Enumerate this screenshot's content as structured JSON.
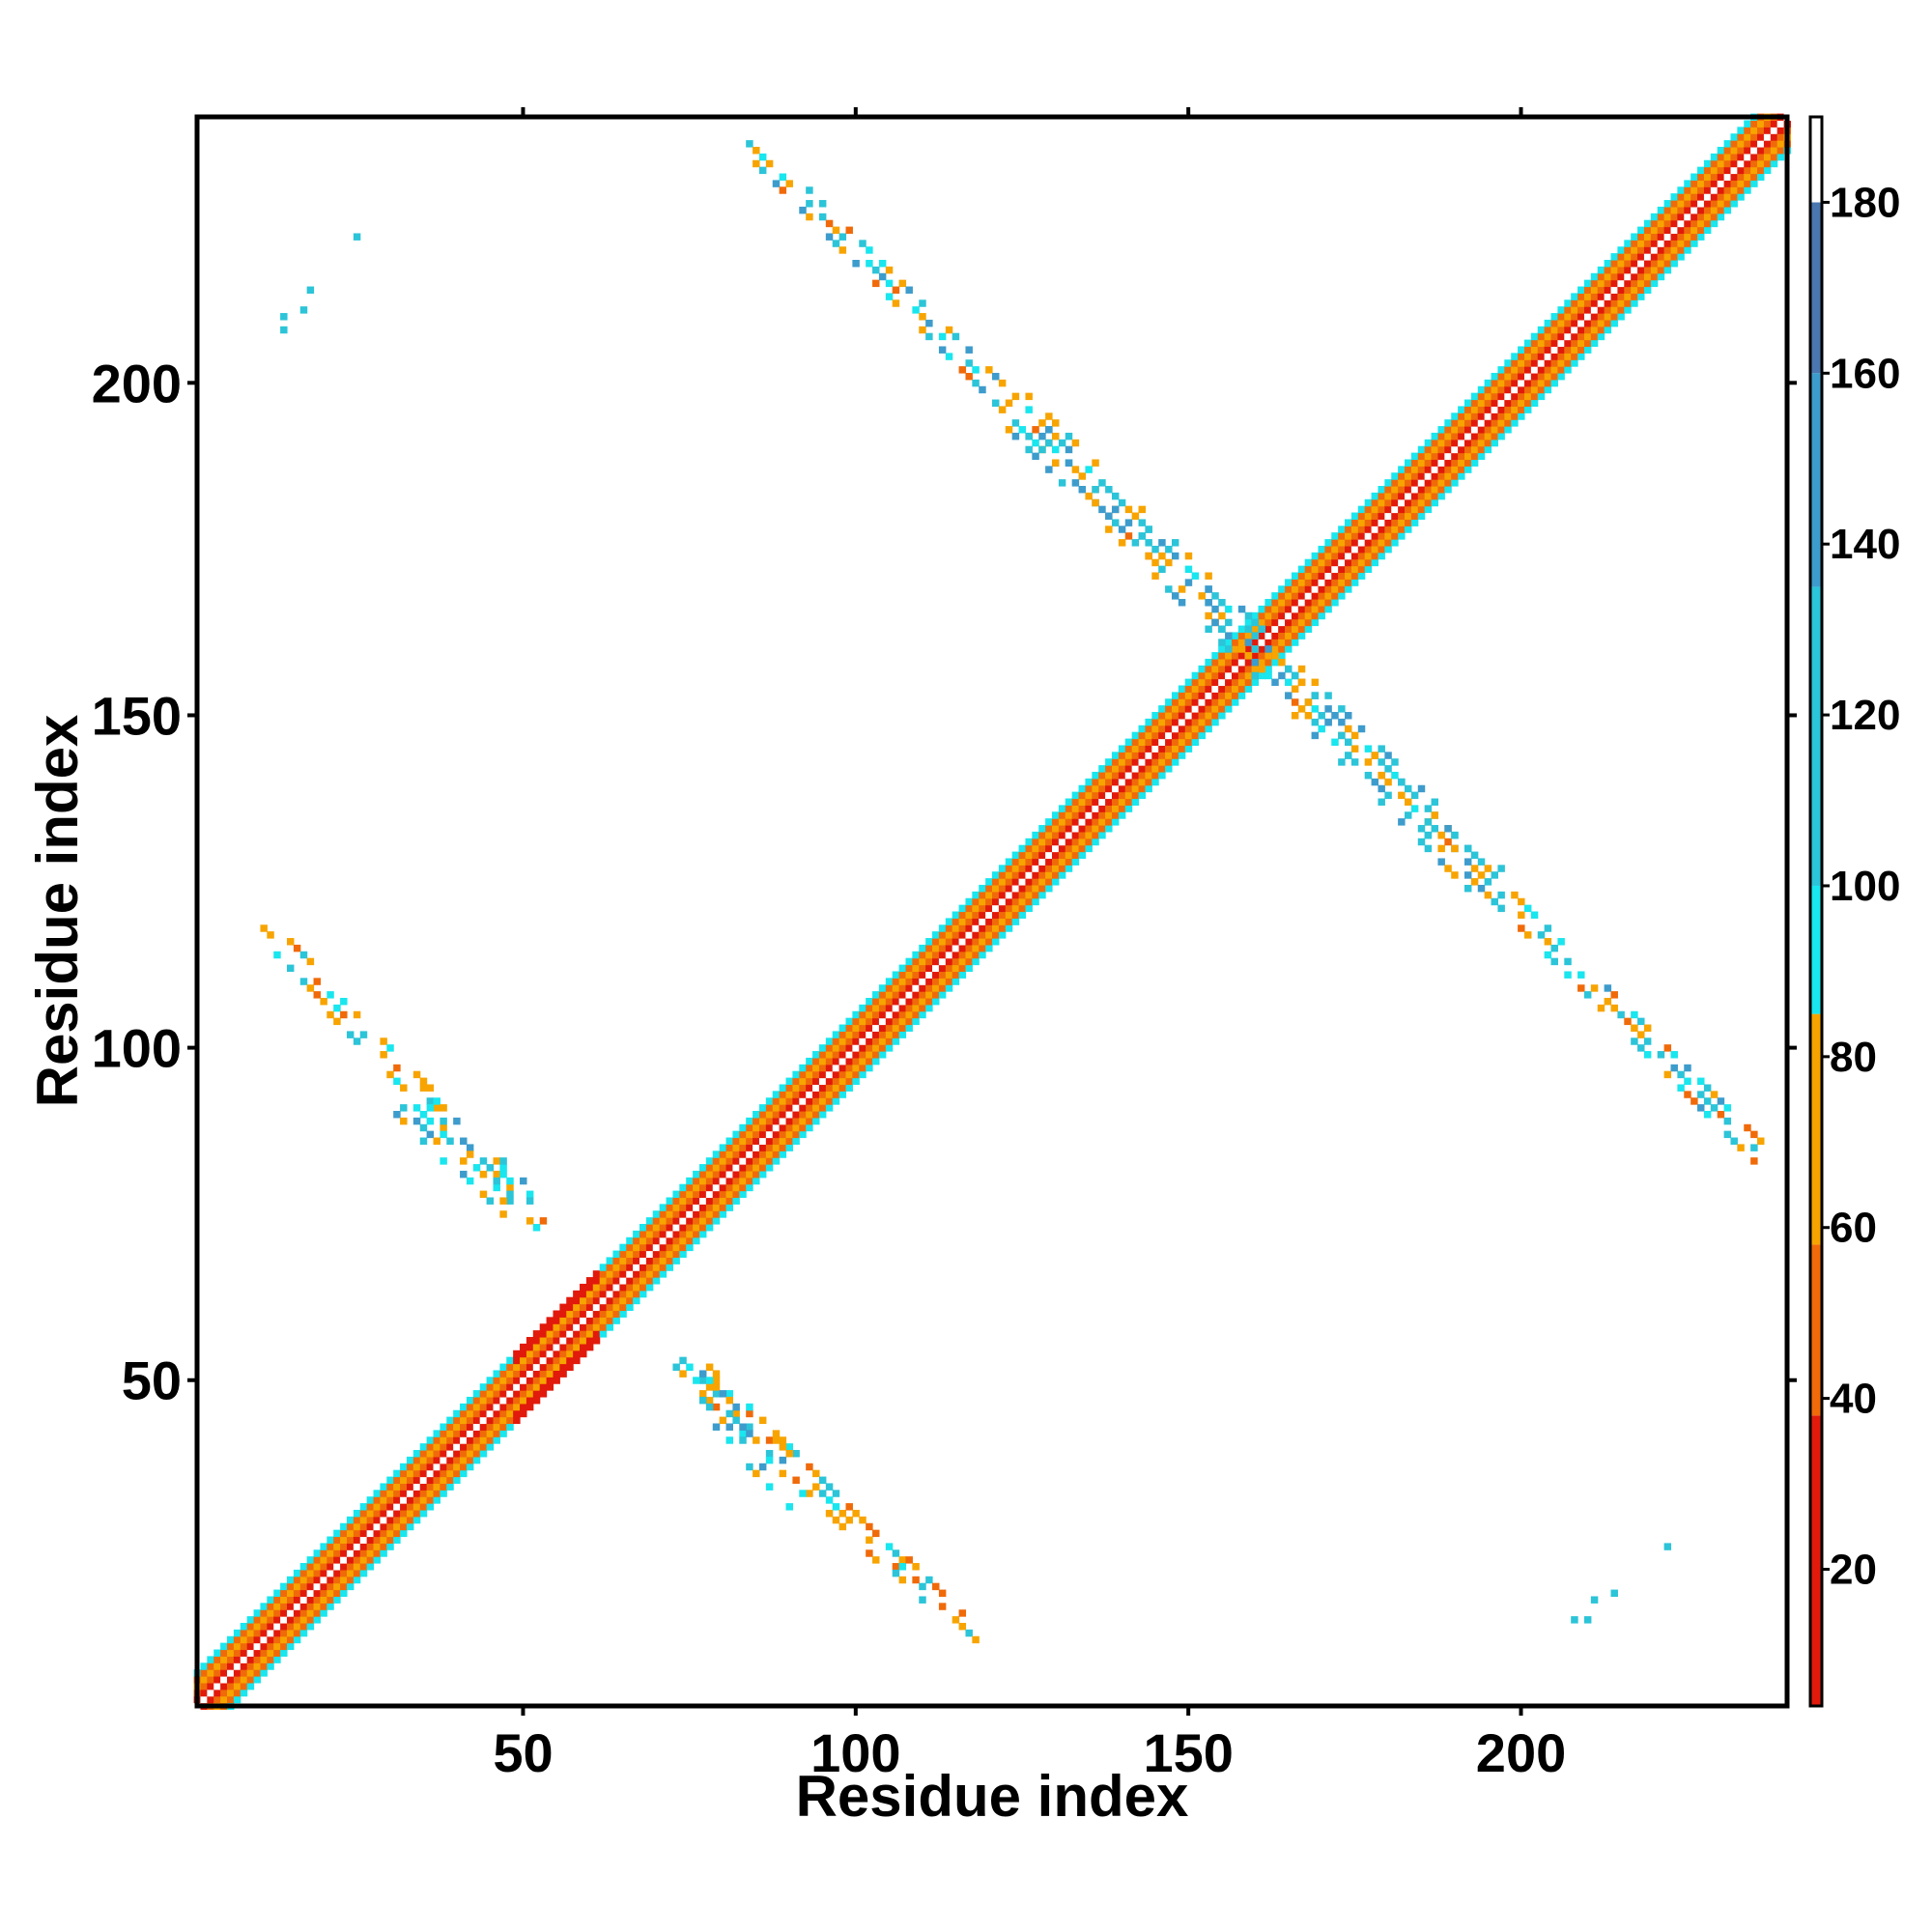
{
  "chart_data": {
    "type": "heatmap",
    "title": "",
    "xlabel": "Residue index",
    "ylabel": "Residue index",
    "xlim": [
      1,
      240
    ],
    "ylim": [
      1,
      240
    ],
    "x_ticks": [
      "50",
      "100",
      "150",
      "200"
    ],
    "y_ticks": [
      "50",
      "100",
      "150",
      "200"
    ],
    "colorbar": {
      "range": [
        4,
        190
      ],
      "ticks": [
        "20",
        "40",
        "60",
        "80",
        "100",
        "120",
        "140",
        "160",
        "180"
      ],
      "segments": [
        {
          "from": 4,
          "to": 38,
          "color": "#e11a0c"
        },
        {
          "from": 38,
          "to": 58,
          "color": "#f06a0a"
        },
        {
          "from": 58,
          "to": 85,
          "color": "#f7a400"
        },
        {
          "from": 85,
          "to": 100,
          "color": "#19e6ee"
        },
        {
          "from": 100,
          "to": 135,
          "color": "#2cc4d8"
        },
        {
          "from": 135,
          "to": 160,
          "color": "#3d9ccc"
        },
        {
          "from": 160,
          "to": 180,
          "color": "#4a77b0"
        },
        {
          "from": 180,
          "to": 190,
          "color": "#ffffff"
        }
      ]
    },
    "grid": false,
    "legend": "colorbar-right",
    "features": [
      {
        "name": "diagonal",
        "from": [
          1,
          1
        ],
        "to": [
          240,
          240
        ]
      },
      {
        "name": "antiparallel-sheet-1",
        "from": [
          84,
          236
        ],
        "to": [
          236,
          84
        ]
      },
      {
        "name": "sheet-block-upper-left",
        "from": [
          11,
          118
        ],
        "to": [
          53,
          74
        ]
      },
      {
        "name": "sheet-block-lower-right",
        "from": [
          74,
          53
        ],
        "to": [
          118,
          11
        ]
      },
      {
        "name": "corner-contacts-upper-left",
        "points": [
          [
            25,
            222
          ],
          [
            18,
            214
          ],
          [
            17,
            211
          ],
          [
            14,
            210
          ],
          [
            14,
            208
          ]
        ]
      },
      {
        "name": "corner-contacts-lower-right",
        "points": [
          [
            222,
            25
          ],
          [
            214,
            18
          ],
          [
            211,
            17
          ],
          [
            210,
            14
          ],
          [
            208,
            14
          ]
        ]
      }
    ]
  }
}
